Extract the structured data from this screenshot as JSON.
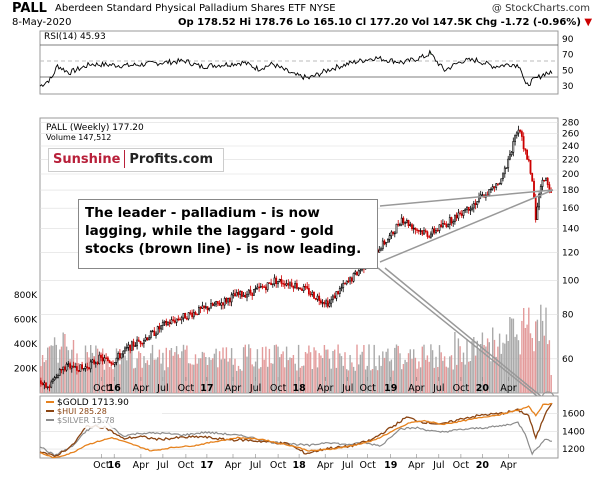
{
  "header": {
    "symbol": "PALL",
    "name": "Aberdeen Standard Physical Palladium Shares ETF",
    "exchange": "NYSE",
    "copyright": "@ StockCharts.com",
    "date": "8-May-2020",
    "ohlc_text": "Op 178.52  Hi 178.76  Lo 165.10  Cl 177.20  Vol 147.5K  Chg -1.72 (-0.96%)"
  },
  "logo": {
    "part1": "Sunshine",
    "part2": "Profits.com"
  },
  "callout": "The leader - palladium - is now lagging, while the laggard - gold stocks (brown line) - is now leading.",
  "colors": {
    "up_candle": "#000000",
    "down_candle": "#cc0000",
    "volume_up": "#aaaaaa",
    "volume_down": "#e39b9b",
    "gold": "#e6821e",
    "hui": "#8b4513",
    "silver": "#8c8c8c",
    "rsi_fill": "#3f7f3f",
    "grid": "#dddddd"
  },
  "chart_data": [
    {
      "type": "line",
      "title": "RSI(14) 45.93",
      "ylim": [
        20,
        100
      ],
      "yticks": [
        30,
        50,
        70,
        90
      ],
      "reference_lines": [
        30,
        50,
        70
      ],
      "series": [
        {
          "name": "RSI(14)",
          "last": 45.93
        }
      ],
      "keypoints": [
        [
          0,
          30
        ],
        [
          8,
          40
        ],
        [
          12,
          56
        ],
        [
          20,
          47
        ],
        [
          35,
          58
        ],
        [
          60,
          56
        ],
        [
          85,
          60
        ],
        [
          100,
          62
        ],
        [
          110,
          55
        ],
        [
          130,
          58
        ],
        [
          140,
          60
        ],
        [
          150,
          52
        ],
        [
          160,
          58
        ],
        [
          175,
          44
        ],
        [
          185,
          40
        ],
        [
          200,
          52
        ],
        [
          215,
          60
        ],
        [
          230,
          66
        ],
        [
          250,
          60
        ],
        [
          265,
          68
        ],
        [
          268,
          72
        ],
        [
          278,
          50
        ],
        [
          290,
          62
        ],
        [
          300,
          63
        ],
        [
          312,
          55
        ],
        [
          324,
          58
        ],
        [
          330,
          56
        ],
        [
          334,
          30
        ],
        [
          338,
          36
        ],
        [
          348,
          47
        ],
        [
          352,
          45.93
        ]
      ]
    },
    {
      "type": "candlestick",
      "title": "PALL (Weekly) 177.20",
      "volume_label": "Volume 147,512",
      "y_scale": "log",
      "ylim": [
        48,
        288
      ],
      "yticks": [
        60,
        80,
        100,
        120,
        140,
        160,
        180,
        200,
        220,
        240,
        260,
        280
      ],
      "volume_ticks": [
        "200K",
        "400K",
        "600K",
        "800K"
      ],
      "volume_max": 900000,
      "last_close": 177.2,
      "keypoints": [
        [
          0,
          52
        ],
        [
          5,
          50
        ],
        [
          10,
          55
        ],
        [
          18,
          58
        ],
        [
          24,
          56
        ],
        [
          34,
          60
        ],
        [
          42,
          59
        ],
        [
          52,
          65
        ],
        [
          64,
          70
        ],
        [
          72,
          75
        ],
        [
          80,
          78
        ],
        [
          92,
          82
        ],
        [
          104,
          86
        ],
        [
          112,
          90
        ],
        [
          124,
          93
        ],
        [
          132,
          97
        ],
        [
          136,
          100
        ],
        [
          146,
          98
        ],
        [
          154,
          94
        ],
        [
          160,
          90
        ],
        [
          168,
          86
        ],
        [
          172,
          92
        ],
        [
          180,
          100
        ],
        [
          188,
          110
        ],
        [
          196,
          122
        ],
        [
          204,
          134
        ],
        [
          210,
          150
        ],
        [
          218,
          140
        ],
        [
          226,
          135
        ],
        [
          236,
          145
        ],
        [
          244,
          155
        ],
        [
          252,
          165
        ],
        [
          262,
          180
        ],
        [
          268,
          190
        ],
        [
          272,
          220
        ],
        [
          276,
          252
        ],
        [
          279,
          265
        ],
        [
          282,
          230
        ],
        [
          285,
          205
        ],
        [
          288,
          150
        ],
        [
          291,
          185
        ],
        [
          294,
          195
        ],
        [
          297,
          177.2
        ]
      ]
    },
    {
      "type": "line",
      "title": "$GOLD 1713.90",
      "ylim": [
        1100,
        1800
      ],
      "yticks": [
        1200,
        1400,
        1600
      ],
      "series": [
        {
          "name": "$GOLD 1713.90",
          "keypoints": [
            [
              0,
              1160
            ],
            [
              8,
              1100
            ],
            [
              18,
              1160
            ],
            [
              26,
              1250
            ],
            [
              40,
              1330
            ],
            [
              52,
              1250
            ],
            [
              62,
              1180
            ],
            [
              74,
              1220
            ],
            [
              86,
              1240
            ],
            [
              96,
              1280
            ],
            [
              110,
              1330
            ],
            [
              124,
              1310
            ],
            [
              132,
              1270
            ],
            [
              142,
              1230
            ],
            [
              150,
              1180
            ],
            [
              162,
              1200
            ],
            [
              174,
              1240
            ],
            [
              186,
              1300
            ],
            [
              196,
              1400
            ],
            [
              206,
              1500
            ],
            [
              214,
              1520
            ],
            [
              224,
              1480
            ],
            [
              236,
              1520
            ],
            [
              246,
              1560
            ],
            [
              256,
              1590
            ],
            [
              266,
              1640
            ],
            [
              272,
              1680
            ],
            [
              276,
              1580
            ],
            [
              280,
              1700
            ],
            [
              285,
              1713.9
            ]
          ]
        },
        {
          "name": "$HUI 285.28",
          "keypoints": [
            [
              0,
              1180
            ],
            [
              8,
              1115
            ],
            [
              18,
              1240
            ],
            [
              26,
              1460
            ],
            [
              36,
              1450
            ],
            [
              46,
              1320
            ],
            [
              56,
              1340
            ],
            [
              66,
              1310
            ],
            [
              78,
              1330
            ],
            [
              90,
              1340
            ],
            [
              102,
              1310
            ],
            [
              116,
              1300
            ],
            [
              128,
              1280
            ],
            [
              138,
              1260
            ],
            [
              148,
              1150
            ],
            [
              160,
              1210
            ],
            [
              172,
              1230
            ],
            [
              184,
              1300
            ],
            [
              196,
              1450
            ],
            [
              204,
              1560
            ],
            [
              212,
              1510
            ],
            [
              224,
              1480
            ],
            [
              236,
              1550
            ],
            [
              248,
              1590
            ],
            [
              256,
              1600
            ],
            [
              266,
              1640
            ],
            [
              272,
              1580
            ],
            [
              276,
              1320
            ],
            [
              282,
              1640
            ],
            [
              285,
              1720
            ]
          ]
        },
        {
          "name": "$SILVER 15.78",
          "keypoints": [
            [
              0,
              1230
            ],
            [
              8,
              1130
            ],
            [
              18,
              1230
            ],
            [
              26,
              1410
            ],
            [
              36,
              1520
            ],
            [
              46,
              1350
            ],
            [
              56,
              1380
            ],
            [
              68,
              1380
            ],
            [
              80,
              1360
            ],
            [
              92,
              1390
            ],
            [
              104,
              1370
            ],
            [
              116,
              1340
            ],
            [
              128,
              1280
            ],
            [
              140,
              1260
            ],
            [
              150,
              1240
            ],
            [
              160,
              1280
            ],
            [
              170,
              1250
            ],
            [
              180,
              1270
            ],
            [
              190,
              1240
            ],
            [
              200,
              1430
            ],
            [
              210,
              1440
            ],
            [
              222,
              1390
            ],
            [
              234,
              1420
            ],
            [
              246,
              1440
            ],
            [
              256,
              1460
            ],
            [
              266,
              1500
            ],
            [
              270,
              1380
            ],
            [
              274,
              1150
            ],
            [
              278,
              1240
            ],
            [
              282,
              1320
            ],
            [
              285,
              1290
            ]
          ]
        }
      ]
    }
  ],
  "xaxis": {
    "labels": [
      {
        "text": "Oct",
        "pos": 0.12,
        "yr": false
      },
      {
        "text": "16",
        "pos": 0.145,
        "yr": true
      },
      {
        "text": "Apr",
        "pos": 0.197,
        "yr": false
      },
      {
        "text": "Jul",
        "pos": 0.24,
        "yr": false
      },
      {
        "text": "Oct",
        "pos": 0.285,
        "yr": false
      },
      {
        "text": "17",
        "pos": 0.326,
        "yr": true
      },
      {
        "text": "Apr",
        "pos": 0.377,
        "yr": false
      },
      {
        "text": "Jul",
        "pos": 0.421,
        "yr": false
      },
      {
        "text": "Oct",
        "pos": 0.465,
        "yr": false
      },
      {
        "text": "18",
        "pos": 0.506,
        "yr": true
      },
      {
        "text": "Apr",
        "pos": 0.557,
        "yr": false
      },
      {
        "text": "Jul",
        "pos": 0.601,
        "yr": false
      },
      {
        "text": "Oct",
        "pos": 0.64,
        "yr": false
      },
      {
        "text": "19",
        "pos": 0.685,
        "yr": true
      },
      {
        "text": "Apr",
        "pos": 0.735,
        "yr": false
      },
      {
        "text": "Jul",
        "pos": 0.779,
        "yr": false
      },
      {
        "text": "Oct",
        "pos": 0.822,
        "yr": false
      },
      {
        "text": "20",
        "pos": 0.864,
        "yr": true
      },
      {
        "text": "Apr",
        "pos": 0.915,
        "yr": false
      }
    ]
  }
}
